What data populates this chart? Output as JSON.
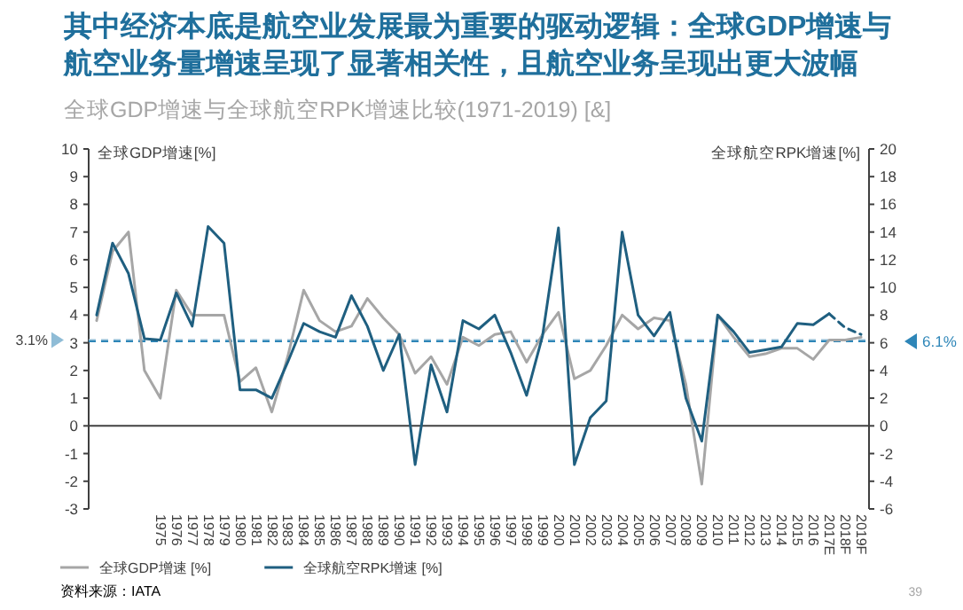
{
  "chart_data": {
    "type": "line",
    "title": "其中经济本底是航空业发展最为重要的驱动逻辑：全球GDP增速与航空业务量增速呈现了显著相关性，且航空业务呈现出更大波幅",
    "subtitle": "全球GDP增速与全球航空RPK增速比较(1971-2019) [&]",
    "ylabel": "全球GDP增速[%]",
    "y2label": "全球航空RPK增速[%]",
    "categories": [
      null,
      null,
      null,
      null,
      "1975",
      "1976",
      "1977",
      "1978",
      "1979",
      "1980",
      "1981",
      "1982",
      "1983",
      "1984",
      "1985",
      "1986",
      "1987",
      "1988",
      "1989",
      "1990",
      "1991",
      "1992",
      "1993",
      "1994",
      "1995",
      "1996",
      "1997",
      "1998",
      "1999",
      "2000",
      "2001",
      "2002",
      "2003",
      "2004",
      "2005",
      "2006",
      "2007",
      "2008",
      "2009",
      "2010",
      "2011",
      "2012",
      "2013",
      "2014",
      "2015",
      "2016",
      "2017E",
      "2018F",
      "2019F"
    ],
    "series": [
      {
        "name": "全球GDP增速 [%]",
        "color": "#a6a6a6",
        "axis": "y",
        "values": [
          3.8,
          6.3,
          7.0,
          2.0,
          1.0,
          4.9,
          4.0,
          4.0,
          4.0,
          1.6,
          2.1,
          0.5,
          2.5,
          4.9,
          3.8,
          3.4,
          3.6,
          4.6,
          3.9,
          3.3,
          1.9,
          2.5,
          1.5,
          3.2,
          2.9,
          3.3,
          3.4,
          2.3,
          3.3,
          4.1,
          1.7,
          2.0,
          2.9,
          4.0,
          3.5,
          3.9,
          3.8,
          1.5,
          -2.1,
          4.0,
          3.2,
          2.5,
          2.6,
          2.8,
          2.8,
          2.4,
          3.1,
          3.1,
          3.2
        ]
      },
      {
        "name": "全球航空RPK增速 [%]",
        "color": "#1f5f80",
        "axis": "y2",
        "values": [
          8.0,
          13.2,
          11.0,
          6.3,
          6.2,
          9.6,
          7.2,
          14.4,
          13.2,
          2.6,
          2.6,
          2.0,
          4.6,
          7.4,
          6.8,
          6.4,
          9.4,
          7.2,
          4.0,
          6.6,
          -2.8,
          4.4,
          1.0,
          7.6,
          7.0,
          8.0,
          5.3,
          2.2,
          6.5,
          14.3,
          -2.8,
          0.6,
          1.8,
          14.0,
          8.0,
          6.5,
          8.2,
          2.0,
          -1.1,
          8.0,
          6.8,
          5.3,
          5.5,
          5.7,
          7.4,
          7.3,
          8.1,
          null,
          null
        ]
      },
      {
        "color": "#1f5f80",
        "axis": "y2",
        "line_style": "dashed",
        "values": [
          null,
          null,
          null,
          null,
          null,
          null,
          null,
          null,
          null,
          null,
          null,
          null,
          null,
          null,
          null,
          null,
          null,
          null,
          null,
          null,
          null,
          null,
          null,
          null,
          null,
          null,
          null,
          null,
          null,
          null,
          null,
          null,
          null,
          null,
          null,
          null,
          null,
          null,
          null,
          null,
          null,
          null,
          null,
          null,
          null,
          null,
          8.1,
          7.1,
          6.6
        ]
      }
    ],
    "ylim": [
      -3,
      10
    ],
    "yticks": [
      -3,
      -2,
      -1,
      0,
      1,
      2,
      3,
      4,
      5,
      6,
      7,
      8,
      9,
      10
    ],
    "y2lim": [
      -6,
      20
    ],
    "y2ticks": [
      -6,
      -4,
      -2,
      0,
      2,
      4,
      6,
      8,
      10,
      12,
      14,
      16,
      18,
      20
    ],
    "ref_lines": [
      {
        "axis": "y",
        "value": 0,
        "color": "#404040",
        "line_style": "solid"
      },
      {
        "axis": "y",
        "value": 3.1,
        "label": "3.1%",
        "color": "#8fbcd6",
        "line_style": "dashed"
      },
      {
        "axis": "y2",
        "value": 6.1,
        "label": "6.1%",
        "color": "#2e86b8",
        "line_style": "dashed"
      }
    ],
    "legend": "bottom",
    "grid": false,
    "marker": "none",
    "annotations": [
      "资料来源：IATA",
      "39"
    ]
  }
}
